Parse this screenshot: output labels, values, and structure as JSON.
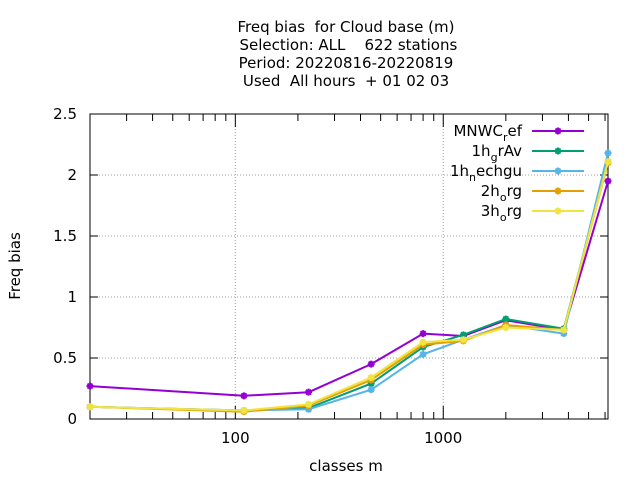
{
  "chart_data": {
    "type": "line",
    "title_lines": [
      "Freq bias  for Cloud base (m)",
      " Selection: ALL    622 stations",
      "Period: 20220816-20220819",
      "Used  All hours  + 01 02 03"
    ],
    "xlabel": "classes m",
    "ylabel": "Freq bias",
    "x_scale": "log",
    "xlim": [
      20,
      6200
    ],
    "ylim": [
      0,
      2.5
    ],
    "x_ticks": [
      100,
      1000
    ],
    "x_tick_labels": [
      "100",
      "1000"
    ],
    "y_ticks": [
      0,
      0.5,
      1,
      1.5,
      2,
      2.5
    ],
    "y_tick_labels": [
      "0",
      "0.5",
      "1",
      "1.5",
      "2",
      "2.5"
    ],
    "grid": true,
    "legend_position": "top-right",
    "x": [
      20,
      110,
      225,
      450,
      800,
      1250,
      2000,
      3800,
      6200
    ],
    "series": [
      {
        "name": "MNWC_ref",
        "name_base": "MNWC",
        "name_sub": "r",
        "name_rest": "ef",
        "color": "#9400d3",
        "values": [
          0.27,
          0.19,
          0.22,
          0.45,
          0.7,
          0.68,
          0.81,
          0.73,
          1.95
        ]
      },
      {
        "name": "1h_grAv",
        "name_base": "1h",
        "name_sub": "g",
        "name_rest": "rAv",
        "color": "#009e73",
        "values": [
          0.1,
          0.07,
          0.09,
          0.29,
          0.59,
          0.69,
          0.82,
          0.74,
          2.11
        ]
      },
      {
        "name": "1h_nechgu",
        "name_base": "1h",
        "name_sub": "n",
        "name_rest": "echgu",
        "color": "#56b4e9",
        "values": [
          0.1,
          0.07,
          0.08,
          0.24,
          0.53,
          0.65,
          0.77,
          0.7,
          2.18
        ]
      },
      {
        "name": "2h_org",
        "name_base": "2h",
        "name_sub": "o",
        "name_rest": "rg",
        "color": "#e69f00",
        "values": [
          0.1,
          0.06,
          0.11,
          0.32,
          0.61,
          0.64,
          0.77,
          0.73,
          2.1
        ]
      },
      {
        "name": "3h_org",
        "name_base": "3h",
        "name_sub": "o",
        "name_rest": "rg",
        "color": "#f0e442",
        "values": [
          0.1,
          0.07,
          0.12,
          0.34,
          0.63,
          0.65,
          0.75,
          0.73,
          2.11
        ]
      }
    ]
  }
}
